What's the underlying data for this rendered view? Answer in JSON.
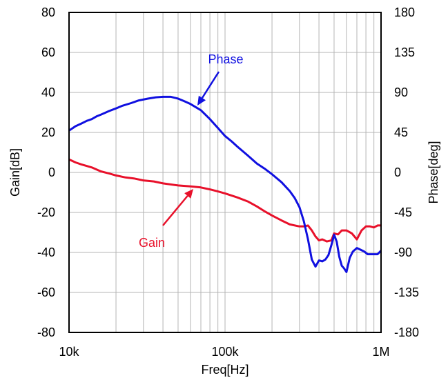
{
  "chart_data": {
    "type": "line",
    "title": "",
    "xlabel": "Freq[Hz]",
    "ylabel": "Gain[dB]",
    "y2label": "Phase[deg]",
    "x_scale": "log",
    "xlim": [
      10000,
      1000000
    ],
    "ylim": [
      -80,
      80
    ],
    "y2lim": [
      -180,
      180
    ],
    "grid": true,
    "x_tick_values": [
      10000,
      100000,
      1000000
    ],
    "x_tick_labels": [
      "10k",
      "100k",
      "1M"
    ],
    "y_ticks": [
      "80",
      "60",
      "40",
      "20",
      "0",
      "-20",
      "-40",
      "-60",
      "-80"
    ],
    "y2_ticks": [
      "180",
      "135",
      "90",
      "45",
      "0",
      "-45",
      "-90",
      "-135",
      "-180"
    ],
    "colors": {
      "gain": "#e8102a",
      "phase": "#1010e0",
      "grid": "#b4b4b4"
    },
    "series": [
      {
        "name": "Gain",
        "axis": "left",
        "x": [
          10000,
          11000,
          12000,
          14000,
          16000,
          18000,
          20000,
          23000,
          26000,
          30000,
          35000,
          40000,
          50000,
          60000,
          70000,
          80000,
          90000,
          100000,
          120000,
          140000,
          160000,
          180000,
          200000,
          230000,
          260000,
          300000,
          320000,
          340000,
          360000,
          380000,
          400000,
          420000,
          450000,
          480000,
          500000,
          530000,
          560000,
          600000,
          650000,
          700000,
          750000,
          800000,
          850000,
          900000,
          950000,
          1000000
        ],
        "values": [
          6.5,
          5,
          4,
          2.5,
          0.5,
          -0.5,
          -1.5,
          -2.5,
          -3,
          -4,
          -4.5,
          -5.5,
          -6.5,
          -7,
          -7.5,
          -8.5,
          -9.5,
          -10.5,
          -12.5,
          -14.5,
          -17,
          -19.5,
          -21.5,
          -24,
          -26,
          -27,
          -27,
          -26.5,
          -29,
          -32,
          -34,
          -33.5,
          -34.5,
          -34,
          -30.5,
          -31,
          -29,
          -29,
          -30.5,
          -33.5,
          -29,
          -27,
          -27,
          -27.5,
          -26.5,
          -26.5
        ]
      },
      {
        "name": "Phase",
        "axis": "right",
        "x": [
          10000,
          11000,
          12000,
          13000,
          14000,
          15000,
          16000,
          17000,
          18000,
          20000,
          22000,
          25000,
          28000,
          32000,
          36000,
          40000,
          45000,
          50000,
          55000,
          60000,
          70000,
          80000,
          90000,
          100000,
          110000,
          120000,
          140000,
          160000,
          180000,
          200000,
          230000,
          260000,
          280000,
          300000,
          320000,
          340000,
          360000,
          380000,
          400000,
          420000,
          440000,
          460000,
          480000,
          500000,
          520000,
          540000,
          560000,
          580000,
          600000,
          630000,
          660000,
          700000,
          740000,
          780000,
          820000,
          860000,
          900000,
          950000,
          1000000
        ],
        "values": [
          47,
          52,
          55,
          58,
          60,
          63,
          65,
          67,
          69,
          72,
          75,
          78,
          81,
          83,
          84.5,
          85,
          85,
          83,
          80,
          77,
          70,
          60,
          50,
          41,
          35,
          29,
          19,
          10,
          4,
          -2,
          -11,
          -21,
          -29,
          -39,
          -55,
          -75,
          -98,
          -106,
          -99,
          -100,
          -98,
          -93,
          -82,
          -70,
          -78,
          -95,
          -105,
          -108,
          -112,
          -96,
          -89,
          -85,
          -87,
          -89,
          -92,
          -92,
          -92,
          -92,
          -88
        ]
      }
    ],
    "annotations": [
      {
        "text": "Phase",
        "series": "Phase"
      },
      {
        "text": "Gain",
        "series": "Gain"
      }
    ]
  }
}
